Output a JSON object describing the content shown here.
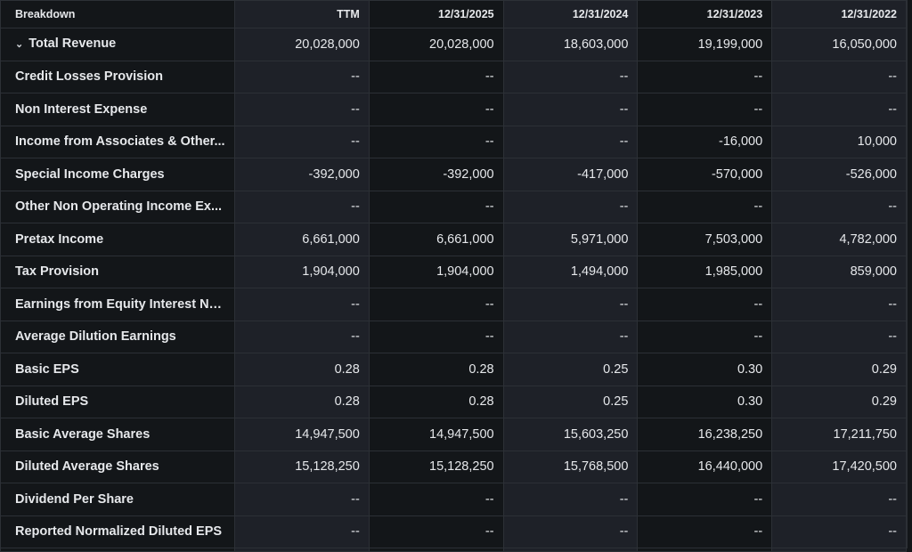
{
  "header": {
    "breakdown": "Breakdown",
    "columns": [
      "TTM",
      "12/31/2025",
      "12/31/2024",
      "12/31/2023",
      "12/31/2022"
    ]
  },
  "rows": [
    {
      "label": "Total Revenue",
      "expandable": true,
      "values": [
        "20,028,000",
        "20,028,000",
        "18,603,000",
        "19,199,000",
        "16,050,000"
      ]
    },
    {
      "label": "Credit Losses Provision",
      "values": [
        "--",
        "--",
        "--",
        "--",
        "--"
      ]
    },
    {
      "label": "Non Interest Expense",
      "values": [
        "--",
        "--",
        "--",
        "--",
        "--"
      ]
    },
    {
      "label": "Income from Associates & Other...",
      "values": [
        "--",
        "--",
        "--",
        "-16,000",
        "10,000"
      ]
    },
    {
      "label": "Special Income Charges",
      "values": [
        "-392,000",
        "-392,000",
        "-417,000",
        "-570,000",
        "-526,000"
      ]
    },
    {
      "label": "Other Non Operating Income Ex...",
      "values": [
        "--",
        "--",
        "--",
        "--",
        "--"
      ]
    },
    {
      "label": "Pretax Income",
      "values": [
        "6,661,000",
        "6,661,000",
        "5,971,000",
        "7,503,000",
        "4,782,000"
      ]
    },
    {
      "label": "Tax Provision",
      "values": [
        "1,904,000",
        "1,904,000",
        "1,494,000",
        "1,985,000",
        "859,000"
      ]
    },
    {
      "label": "Earnings from Equity Interest Ne...",
      "values": [
        "--",
        "--",
        "--",
        "--",
        "--"
      ]
    },
    {
      "label": "Average Dilution Earnings",
      "values": [
        "--",
        "--",
        "--",
        "--",
        "--"
      ]
    },
    {
      "label": "Basic EPS",
      "values": [
        "0.28",
        "0.28",
        "0.25",
        "0.30",
        "0.29"
      ]
    },
    {
      "label": "Diluted EPS",
      "values": [
        "0.28",
        "0.28",
        "0.25",
        "0.30",
        "0.29"
      ]
    },
    {
      "label": "Basic Average Shares",
      "values": [
        "14,947,500",
        "14,947,500",
        "15,603,250",
        "16,238,250",
        "17,211,750"
      ]
    },
    {
      "label": "Diluted Average Shares",
      "values": [
        "15,128,250",
        "15,128,250",
        "15,768,500",
        "16,440,000",
        "17,420,500"
      ]
    },
    {
      "label": "Dividend Per Share",
      "values": [
        "--",
        "--",
        "--",
        "--",
        "--"
      ]
    },
    {
      "label": "Reported Normalized Diluted EPS",
      "values": [
        "--",
        "--",
        "--",
        "--",
        "--"
      ]
    },
    {
      "label": "",
      "values": [
        "",
        "",
        "",
        "",
        ""
      ]
    }
  ]
}
